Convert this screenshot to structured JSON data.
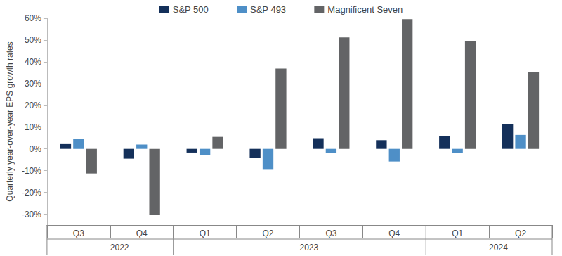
{
  "chart_data": {
    "type": "bar",
    "categories": [
      "Q3",
      "Q4",
      "Q1",
      "Q2",
      "Q3",
      "Q4",
      "Q1",
      "Q2"
    ],
    "years": [
      "2022",
      "2022",
      "2023",
      "2023",
      "2023",
      "2023",
      "2024",
      "2024"
    ],
    "y_label": "Quarterly year-over-year EPS growth rates",
    "series": [
      {
        "name": "S&P 500",
        "color": "#14305a",
        "values": [
          2.2,
          -4.5,
          -1.7,
          -4.1,
          4.9,
          4.0,
          5.9,
          11.3
        ]
      },
      {
        "name": "S&P 493",
        "color": "#4e8fc7",
        "values": [
          4.7,
          2.0,
          -2.8,
          -9.6,
          -2.0,
          -5.8,
          -1.8,
          6.4
        ]
      },
      {
        "name": "Magnificent Seven",
        "color": "#636466",
        "values": [
          -11.3,
          -30.5,
          5.5,
          36.9,
          51.2,
          59.6,
          49.5,
          35.2
        ]
      }
    ],
    "ylim": [
      -35,
      60
    ],
    "yticks": [
      {
        "value": -30,
        "label": "-30%"
      },
      {
        "value": -20,
        "label": "-20%"
      },
      {
        "value": -10,
        "label": "-10%"
      },
      {
        "value": 0,
        "label": "0%"
      },
      {
        "value": 10,
        "label": "10%"
      },
      {
        "value": 20,
        "label": "20%"
      },
      {
        "value": 30,
        "label": "30%"
      },
      {
        "value": 40,
        "label": "40%"
      },
      {
        "value": 50,
        "label": "50%"
      },
      {
        "value": 60,
        "label": "60%"
      }
    ],
    "grid": false,
    "legend": "top"
  }
}
